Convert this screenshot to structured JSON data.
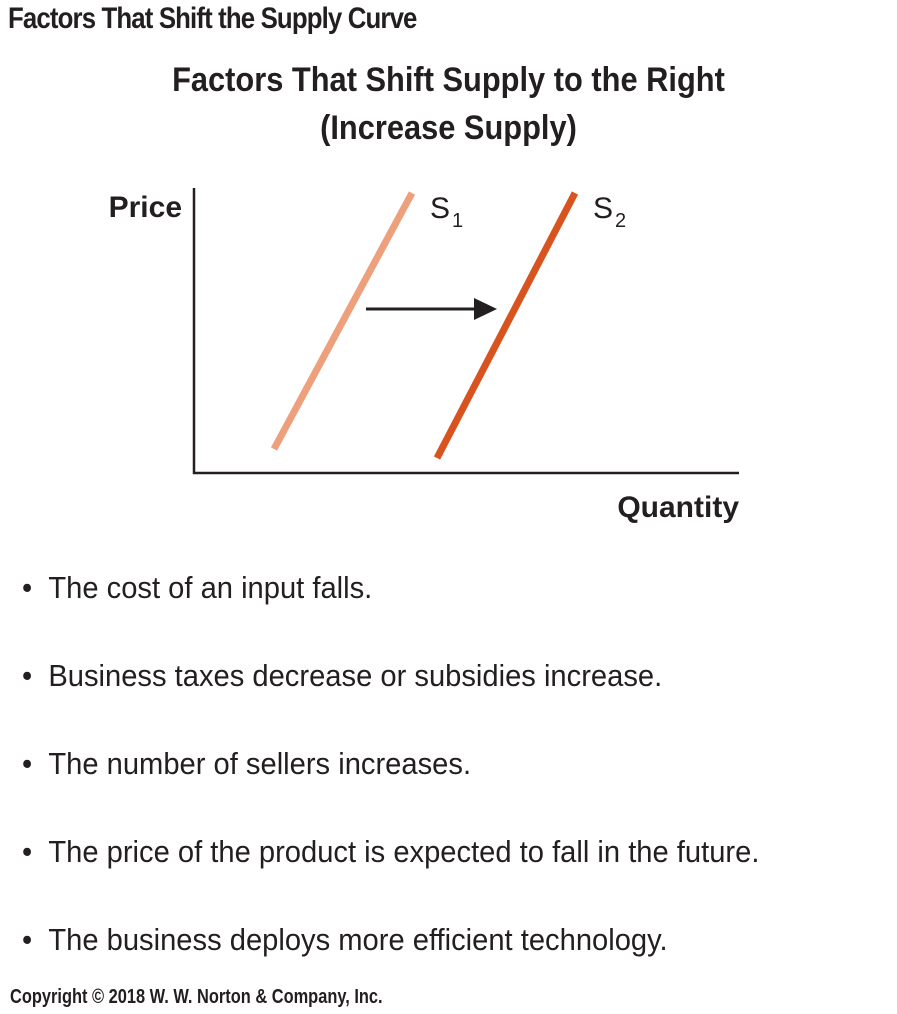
{
  "header": {
    "title": "Factors That Shift the Supply Curve"
  },
  "diagram": {
    "title_line1": "Factors That Shift Supply to the Right",
    "title_line2": "(Increase Supply)",
    "y_axis_label": "Price",
    "x_axis_label": "Quantity",
    "curves": [
      {
        "letter": "S",
        "subscript": "1",
        "color": "#eea07c"
      },
      {
        "letter": "S",
        "subscript": "2",
        "color": "#d9531e"
      }
    ],
    "arrow_color": "#231f20"
  },
  "factors": [
    "The cost of an input falls.",
    "Business taxes decrease or subsidies increase.",
    "The number of sellers increases.",
    "The price of the product is expected to fall in the future.",
    "The business deploys more efficient technology."
  ],
  "footer": {
    "copyright": "Copyright © 2018 W. W. Norton & Company, Inc."
  }
}
